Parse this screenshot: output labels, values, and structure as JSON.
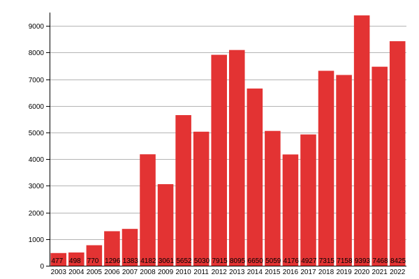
{
  "chart_data": {
    "type": "bar",
    "categories": [
      "2003",
      "2004",
      "2005",
      "2006",
      "2007",
      "2008",
      "2009",
      "2010",
      "2011",
      "2012",
      "2013",
      "2014",
      "2015",
      "2016",
      "2017",
      "2018",
      "2019",
      "2020",
      "2021",
      "2022"
    ],
    "values": [
      477,
      498,
      770,
      1296,
      1383,
      4182,
      3061,
      5652,
      5030,
      7915,
      8095,
      6650,
      5059,
      4176,
      4927,
      7315,
      7158,
      9393,
      7468,
      8425
    ],
    "data_labels": [
      "477",
      "498",
      "770",
      "1296",
      "1383",
      "4182",
      "3061",
      "5652",
      "5030",
      "7915",
      "8095",
      "6650",
      "5059",
      "4176",
      "4927",
      "7315",
      "7158",
      "9393",
      "7468",
      "8425"
    ],
    "title": "",
    "xlabel": "",
    "ylabel": "",
    "ylim": [
      0,
      9500
    ],
    "yticks": [
      0,
      1000,
      2000,
      3000,
      4000,
      5000,
      6000,
      7000,
      8000,
      9000
    ],
    "ytick_labels": [
      "0",
      "1000",
      "2000",
      "3000",
      "4000",
      "5000",
      "6000",
      "7000",
      "8000",
      "9000"
    ],
    "grid": "horizontal",
    "bar_color": "#e33333",
    "grid_color": "#b4b4b4"
  }
}
